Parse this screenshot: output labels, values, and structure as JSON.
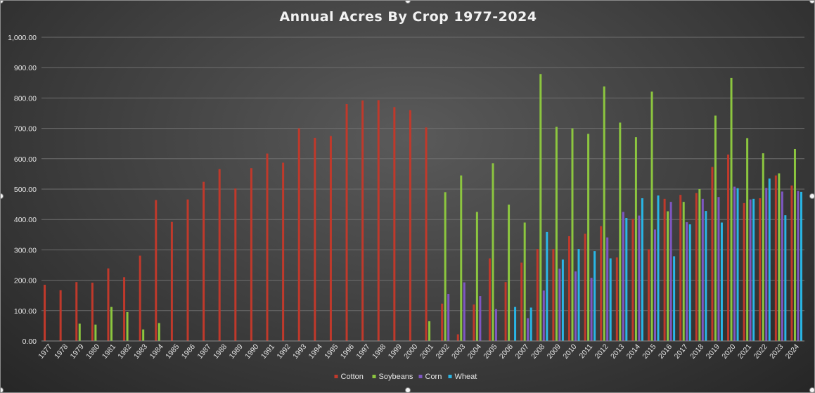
{
  "chart_data": {
    "type": "bar",
    "title": "Annual Acres By Crop 1977-2024",
    "xlabel": "",
    "ylabel": "",
    "ylim": [
      0,
      1000
    ],
    "yticks": [
      "0.00",
      "100.00",
      "200.00",
      "300.00",
      "400.00",
      "500.00",
      "600.00",
      "700.00",
      "800.00",
      "900.00",
      "1,000.00"
    ],
    "grid": true,
    "legend_position": "bottom",
    "categories": [
      "1977",
      "1978",
      "1979",
      "1980",
      "1981",
      "1982",
      "1983",
      "1984",
      "1985",
      "1986",
      "1987",
      "1988",
      "1989",
      "1990",
      "1991",
      "1992",
      "1993",
      "1994",
      "1995",
      "1996",
      "1997",
      "1998",
      "1999",
      "2000",
      "2001",
      "2002",
      "2003",
      "2004",
      "2005",
      "2006",
      "2007",
      "2008",
      "2009",
      "2010",
      "2011",
      "2012",
      "2013",
      "2014",
      "2015",
      "2016",
      "2017",
      "2018",
      "2019",
      "2020",
      "2021",
      "2022",
      "2023",
      "2024"
    ],
    "series": [
      {
        "name": "Cotton",
        "color": "#c0392b",
        "values": [
          185,
          167,
          194,
          192,
          239,
          210,
          281,
          464,
          392,
          466,
          524,
          566,
          502,
          569,
          617,
          587,
          700,
          669,
          675,
          780,
          792,
          793,
          770,
          760,
          703,
          123,
          22,
          120,
          272,
          194,
          258,
          303,
          303,
          345,
          353,
          378,
          275,
          402,
          302,
          468,
          481,
          487,
          573,
          614,
          454,
          470,
          545,
          512
        ]
      },
      {
        "name": "Soybeans",
        "color": "#8cc63f",
        "values": [
          null,
          null,
          57,
          54,
          112,
          95,
          38,
          59,
          null,
          null,
          null,
          null,
          null,
          null,
          null,
          null,
          null,
          null,
          null,
          null,
          null,
          null,
          null,
          null,
          65,
          490,
          545,
          425,
          585,
          449,
          390,
          879,
          705,
          700,
          682,
          838,
          719,
          671,
          821,
          427,
          458,
          500,
          742,
          866,
          668,
          618,
          552,
          632
        ]
      },
      {
        "name": "Corn",
        "color": "#7e57c2",
        "values": [
          null,
          null,
          null,
          null,
          null,
          null,
          null,
          null,
          null,
          null,
          null,
          null,
          null,
          null,
          null,
          null,
          null,
          null,
          null,
          null,
          null,
          null,
          null,
          null,
          null,
          155,
          193,
          148,
          105,
          null,
          75,
          166,
          238,
          229,
          208,
          341,
          425,
          413,
          367,
          458,
          391,
          468,
          474,
          508,
          466,
          504,
          492,
          494
        ]
      },
      {
        "name": "Wheat",
        "color": "#29b6e6",
        "values": [
          null,
          null,
          null,
          null,
          null,
          null,
          null,
          null,
          null,
          null,
          null,
          null,
          null,
          null,
          null,
          null,
          null,
          null,
          null,
          null,
          null,
          null,
          null,
          null,
          null,
          null,
          null,
          null,
          null,
          112,
          110,
          359,
          268,
          303,
          296,
          272,
          405,
          470,
          479,
          279,
          384,
          428,
          390,
          503,
          468,
          535,
          414,
          491
        ]
      }
    ]
  }
}
